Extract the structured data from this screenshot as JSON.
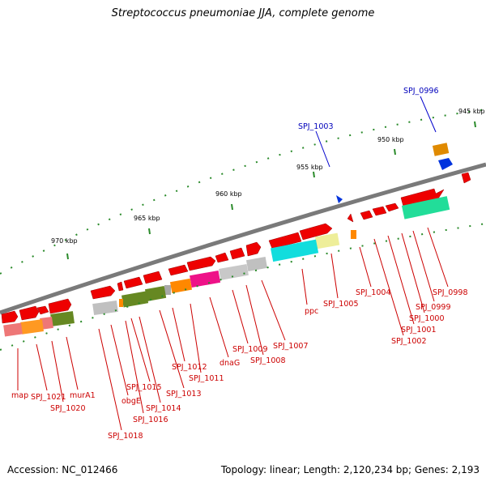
{
  "title": "Streptococcus pneumoniae JJA, complete genome",
  "footer": {
    "accession": "Accession: NC_012466",
    "topology": "Topology: linear; Length: 2,120,234 bp; Genes: 2,193"
  },
  "colors": {
    "backbone": "#808080",
    "gene_forward": "#ee0000",
    "tick": "#227722",
    "label_red": "#cc0000",
    "label_blue": "#0000bb"
  },
  "scale_labels": [
    "945 kbp",
    "950 kbp",
    "955 kbp",
    "960 kbp",
    "965 kbp",
    "970 kbp"
  ],
  "gene_labels": [
    "SPJ_0996",
    "SPJ_0998",
    "SPJ_0999",
    "SPJ_1000",
    "SPJ_1001",
    "SPJ_1002",
    "SPJ_1003",
    "SPJ_1004",
    "SPJ_1005",
    "ppc",
    "SPJ_1007",
    "SPJ_1008",
    "SPJ_1009",
    "dnaG",
    "SPJ_1011",
    "SPJ_1012",
    "SPJ_1013",
    "SPJ_1014",
    "SPJ_1015",
    "SPJ_1016",
    "obgE",
    "SPJ_1018",
    "murA1",
    "SPJ_1020",
    "SPJ_1021",
    "map"
  ]
}
